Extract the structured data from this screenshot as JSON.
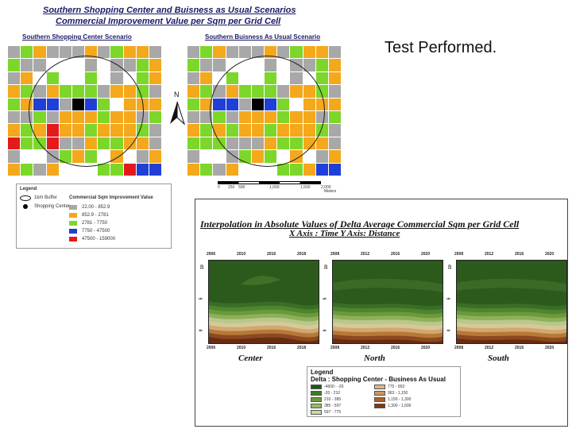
{
  "header": {
    "title_line1": "Southern Shopping Center and Buisness as Usual Scenarios",
    "title_line2": "Commercial Improvement Value per Sqm per Grid Cell"
  },
  "maps": {
    "left_title": "Southern Shopping Center Scenario",
    "right_title": "Southern Buisness As Usual Scenario",
    "north_label": "N",
    "colors": {
      "g": "#a8a8a8",
      "o": "#f4a81c",
      "l": "#7dd62a",
      "b": "#1f3fd6",
      "r": "#e31a1c",
      "k": "#000000",
      "w": "#ffffff"
    },
    "left_cells": [
      "glogggogloog",
      "lggwwwgwgglo",
      "gowlwwlwgwlo",
      "olgolllgoolg",
      "lobbgkblwooo",
      "gglgoooloogl",
      "oloroolooolg",
      "rllrggolloog",
      "gwwglolwowgo",
      "olgowwwllrbb"
    ],
    "right_cells": [
      "glogggogloog",
      "lggwwwgwgglo",
      "gowlwwlwgwlo",
      "olgolllgoolg",
      "lobbgkblwooo",
      "gglgoooloogl",
      "ololoolooolg",
      "lllgggolloog",
      "gwwglolwowgo",
      "olgowwwllobb"
    ]
  },
  "legend": {
    "title": "Legend",
    "item_radius": "1km Buffer",
    "item_center": "Shopping Center",
    "value_title": "Commercial Sqm Improvement Value",
    "classes": [
      {
        "label": "22.00 - 852.9",
        "color": "#a8a8a8"
      },
      {
        "label": "852.9 - 2781",
        "color": "#f4a81c"
      },
      {
        "label": "2781 - 7750",
        "color": "#7dd62a"
      },
      {
        "label": "7750 - 47500",
        "color": "#1f3fd6"
      },
      {
        "label": "47500 - 159000",
        "color": "#e31a1c"
      }
    ]
  },
  "scale": {
    "ticks": [
      "0",
      "250",
      "500",
      "1,000",
      "1,500",
      "2,000"
    ],
    "unit": "Meters"
  },
  "caption": "Test Performed.",
  "interpolation": {
    "title": "Interpolation in Absolute Values of Delta Average Commercial Sqm per Grid Cell",
    "subtitle": "X Axis : Time Y Axis: Distance",
    "years": [
      "2006",
      "2010",
      "2016",
      "2018"
    ],
    "years_top_mid": [
      "2008",
      "2012",
      "2016",
      "2020"
    ],
    "years_top_right": [
      "2008",
      "2012",
      "2016",
      "2020"
    ],
    "years_bottom_mid": [
      "2008",
      "2012",
      "2016",
      "2020"
    ],
    "years_bottom_right": [
      "2008",
      "2012",
      "2016",
      "2020"
    ],
    "y_ticks": [
      "10",
      "5",
      "0"
    ],
    "plots": [
      {
        "name": "Center"
      },
      {
        "name": "North"
      },
      {
        "name": "South"
      }
    ],
    "legend_title": "Legend",
    "legend_subtitle": "Delta : Shopping Center - Business As Usual",
    "legend_items": [
      {
        "label": "-4600 - -20",
        "color": "#1e5a1a"
      },
      {
        "label": "-20 - 210",
        "color": "#3d7a2a"
      },
      {
        "label": "210 - 385",
        "color": "#6a9a3a"
      },
      {
        "label": "385 - 597",
        "color": "#9ab868"
      },
      {
        "label": "597 - 775",
        "color": "#c8d8a8"
      },
      {
        "label": "775 - 963",
        "color": "#d8b888"
      },
      {
        "label": "963 - 1,150",
        "color": "#c89858"
      },
      {
        "label": "1,150 - 1,300",
        "color": "#a8602a"
      },
      {
        "label": "1,300 - 1,500",
        "color": "#7a3a1a"
      }
    ]
  }
}
